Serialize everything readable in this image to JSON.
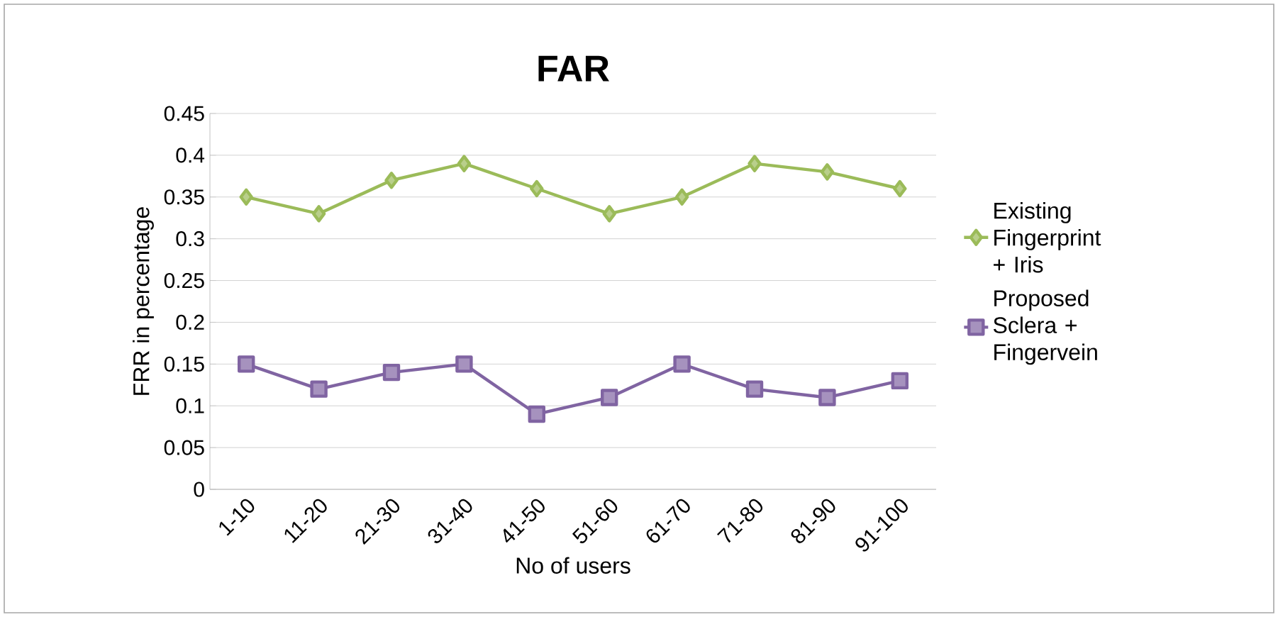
{
  "chart_data": {
    "type": "line",
    "title": "FAR",
    "xlabel": "No of users",
    "ylabel": "FRR in percentage",
    "categories": [
      "1-10",
      "11-20",
      "21-30",
      "31-40",
      "41-50",
      "51-60",
      "61-70",
      "71-80",
      "81-90",
      "91-100"
    ],
    "series": [
      {
        "name": "Existing Fingerprint + Iris",
        "color": "#9bbb59",
        "marker": "diamond",
        "values": [
          0.35,
          0.33,
          0.37,
          0.39,
          0.36,
          0.33,
          0.35,
          0.39,
          0.38,
          0.36
        ]
      },
      {
        "name": "Proposed Sclera + Fingervein",
        "color": "#8064a2",
        "marker": "square",
        "values": [
          0.15,
          0.12,
          0.14,
          0.15,
          0.09,
          0.11,
          0.15,
          0.12,
          0.11,
          0.13
        ]
      }
    ],
    "ylim": [
      0,
      0.45
    ],
    "yticks": [
      0,
      0.05,
      0.1,
      0.15,
      0.2,
      0.25,
      0.3,
      0.35,
      0.4,
      0.45
    ],
    "grid": "y",
    "legend": "right",
    "line_style": "solid"
  }
}
